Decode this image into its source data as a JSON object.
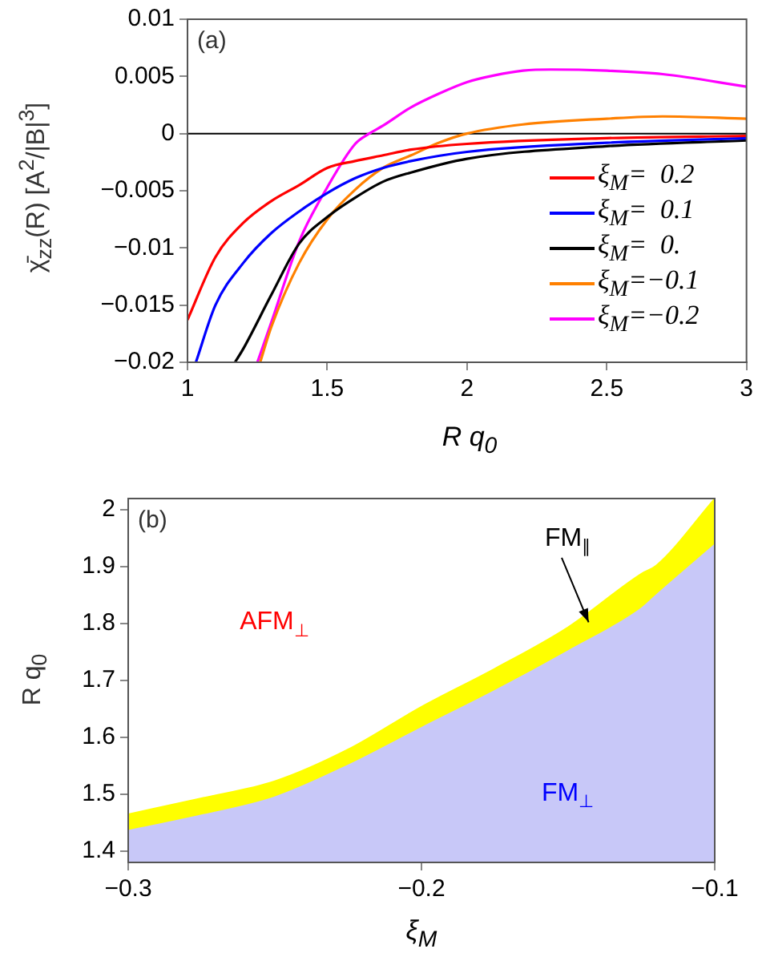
{
  "chart_data": [
    {
      "type": "line",
      "xlabel": "R q$_{0}$",
      "ylabel": "χ̄$_{zz}$(R) [A$^{2}$/|B|$^{3}$]",
      "xlim": [
        1,
        3
      ],
      "xticks": [
        1,
        1.5,
        2,
        2.5,
        3
      ],
      "ylim": [
        -0.02,
        0.01
      ],
      "yticks": [
        0.01,
        0.005,
        0,
        {
          "value": -0.005,
          "label": "−0.005"
        },
        {
          "value": -0.01,
          "label": "−0.01"
        },
        {
          "value": -0.015,
          "label": "−0.015"
        },
        {
          "value": -0.02,
          "label": "−0.02"
        }
      ],
      "grid": false,
      "legend": "right",
      "marker": "none",
      "line_style": "solid",
      "annotations": [
        "(a)"
      ],
      "ref_lines": [
        {
          "axis": "y",
          "value": 0,
          "color": "#000000"
        }
      ],
      "series": [
        {
          "name": "ξ$_{M}$=  0.2",
          "color": "#ff0000",
          "x": [
            1,
            1.1,
            1.2,
            1.3,
            1.4,
            1.5,
            1.6,
            1.7,
            1.8,
            2.0,
            2.5,
            3
          ],
          "values": [
            -0.0163,
            -0.0108,
            -0.0078,
            -0.0059,
            -0.0045,
            -0.003,
            -0.0024,
            -0.0019,
            -0.0014,
            -0.0009,
            -0.0004,
            -0.0002
          ]
        },
        {
          "name": "ξ$_{M}$=  0.1",
          "color": "#0000ff",
          "x": [
            1.03,
            1.1,
            1.2,
            1.3,
            1.4,
            1.5,
            1.6,
            1.7,
            1.8,
            2.0,
            2.5,
            3
          ],
          "values": [
            -0.02,
            -0.015,
            -0.0113,
            -0.0087,
            -0.0068,
            -0.0052,
            -0.0039,
            -0.003,
            -0.0024,
            -0.0016,
            -0.0008,
            -0.0004
          ]
        },
        {
          "name": "ξ$_{M}$=  0.",
          "color": "#000000",
          "x": [
            1.17,
            1.2,
            1.3,
            1.4,
            1.5,
            1.6,
            1.7,
            1.8,
            2.0,
            2.5,
            3
          ],
          "values": [
            -0.02,
            -0.0188,
            -0.0141,
            -0.0096,
            -0.0073,
            -0.0056,
            -0.0042,
            -0.0034,
            -0.0022,
            -0.0011,
            -0.0006
          ]
        },
        {
          "name": "ξ$_{M}$=−0.1",
          "color": "#ff8000",
          "x": [
            1.26,
            1.3,
            1.4,
            1.5,
            1.6,
            1.7,
            1.8,
            1.9,
            2.0,
            2.2,
            2.5,
            2.7,
            3
          ],
          "values": [
            -0.02,
            -0.0169,
            -0.0113,
            -0.0075,
            -0.0049,
            -0.003,
            -0.0019,
            -0.0008,
            0,
            0.0008,
            0.0013,
            0.0015,
            0.0013
          ]
        },
        {
          "name": "ξ$_{M}$=−0.2",
          "color": "#ff00ff",
          "x": [
            1.25,
            1.3,
            1.4,
            1.5,
            1.6,
            1.65,
            1.7,
            1.8,
            1.9,
            2.0,
            2.1,
            2.2,
            2.3,
            2.5,
            2.7,
            3
          ],
          "values": [
            -0.02,
            -0.0165,
            -0.0094,
            -0.0047,
            -0.0009,
            0,
            0.0007,
            0.0023,
            0.0035,
            0.0045,
            0.0051,
            0.0055,
            0.0056,
            0.0055,
            0.0052,
            0.0041
          ]
        }
      ]
    },
    {
      "type": "area",
      "xlabel": "ξ$_{M}$",
      "ylabel": "R q$_{0}$",
      "xlim": [
        -0.3,
        -0.1
      ],
      "xticks": [
        {
          "value": -0.3,
          "label": "−0.3"
        },
        {
          "value": -0.2,
          "label": "−0.2"
        },
        {
          "value": -0.1,
          "label": "−0.1"
        }
      ],
      "ylim": [
        1.38,
        2.02
      ],
      "yticks": [
        1.4,
        1.5,
        1.6,
        1.7,
        1.8,
        1.9,
        2
      ],
      "grid": false,
      "legend": false,
      "x": [
        -0.3,
        -0.275,
        -0.25,
        -0.225,
        -0.2,
        -0.175,
        -0.15,
        -0.125,
        -0.12,
        -0.1
      ],
      "annotations": [
        "(b)",
        "AFM$_{⊥}$",
        "FM$_{⊥}$",
        "FM$_{∥}$"
      ],
      "series": [
        {
          "color": "#c8c8f8",
          "values": [
            1.436,
            1.463,
            1.495,
            1.551,
            1.617,
            1.682,
            1.752,
            1.827,
            1.85,
            1.939
          ]
        },
        {
          "color": "#ffff00",
          "values": [
            1.465,
            1.493,
            1.523,
            1.579,
            1.654,
            1.721,
            1.794,
            1.888,
            1.902,
            2.02
          ]
        }
      ]
    }
  ]
}
